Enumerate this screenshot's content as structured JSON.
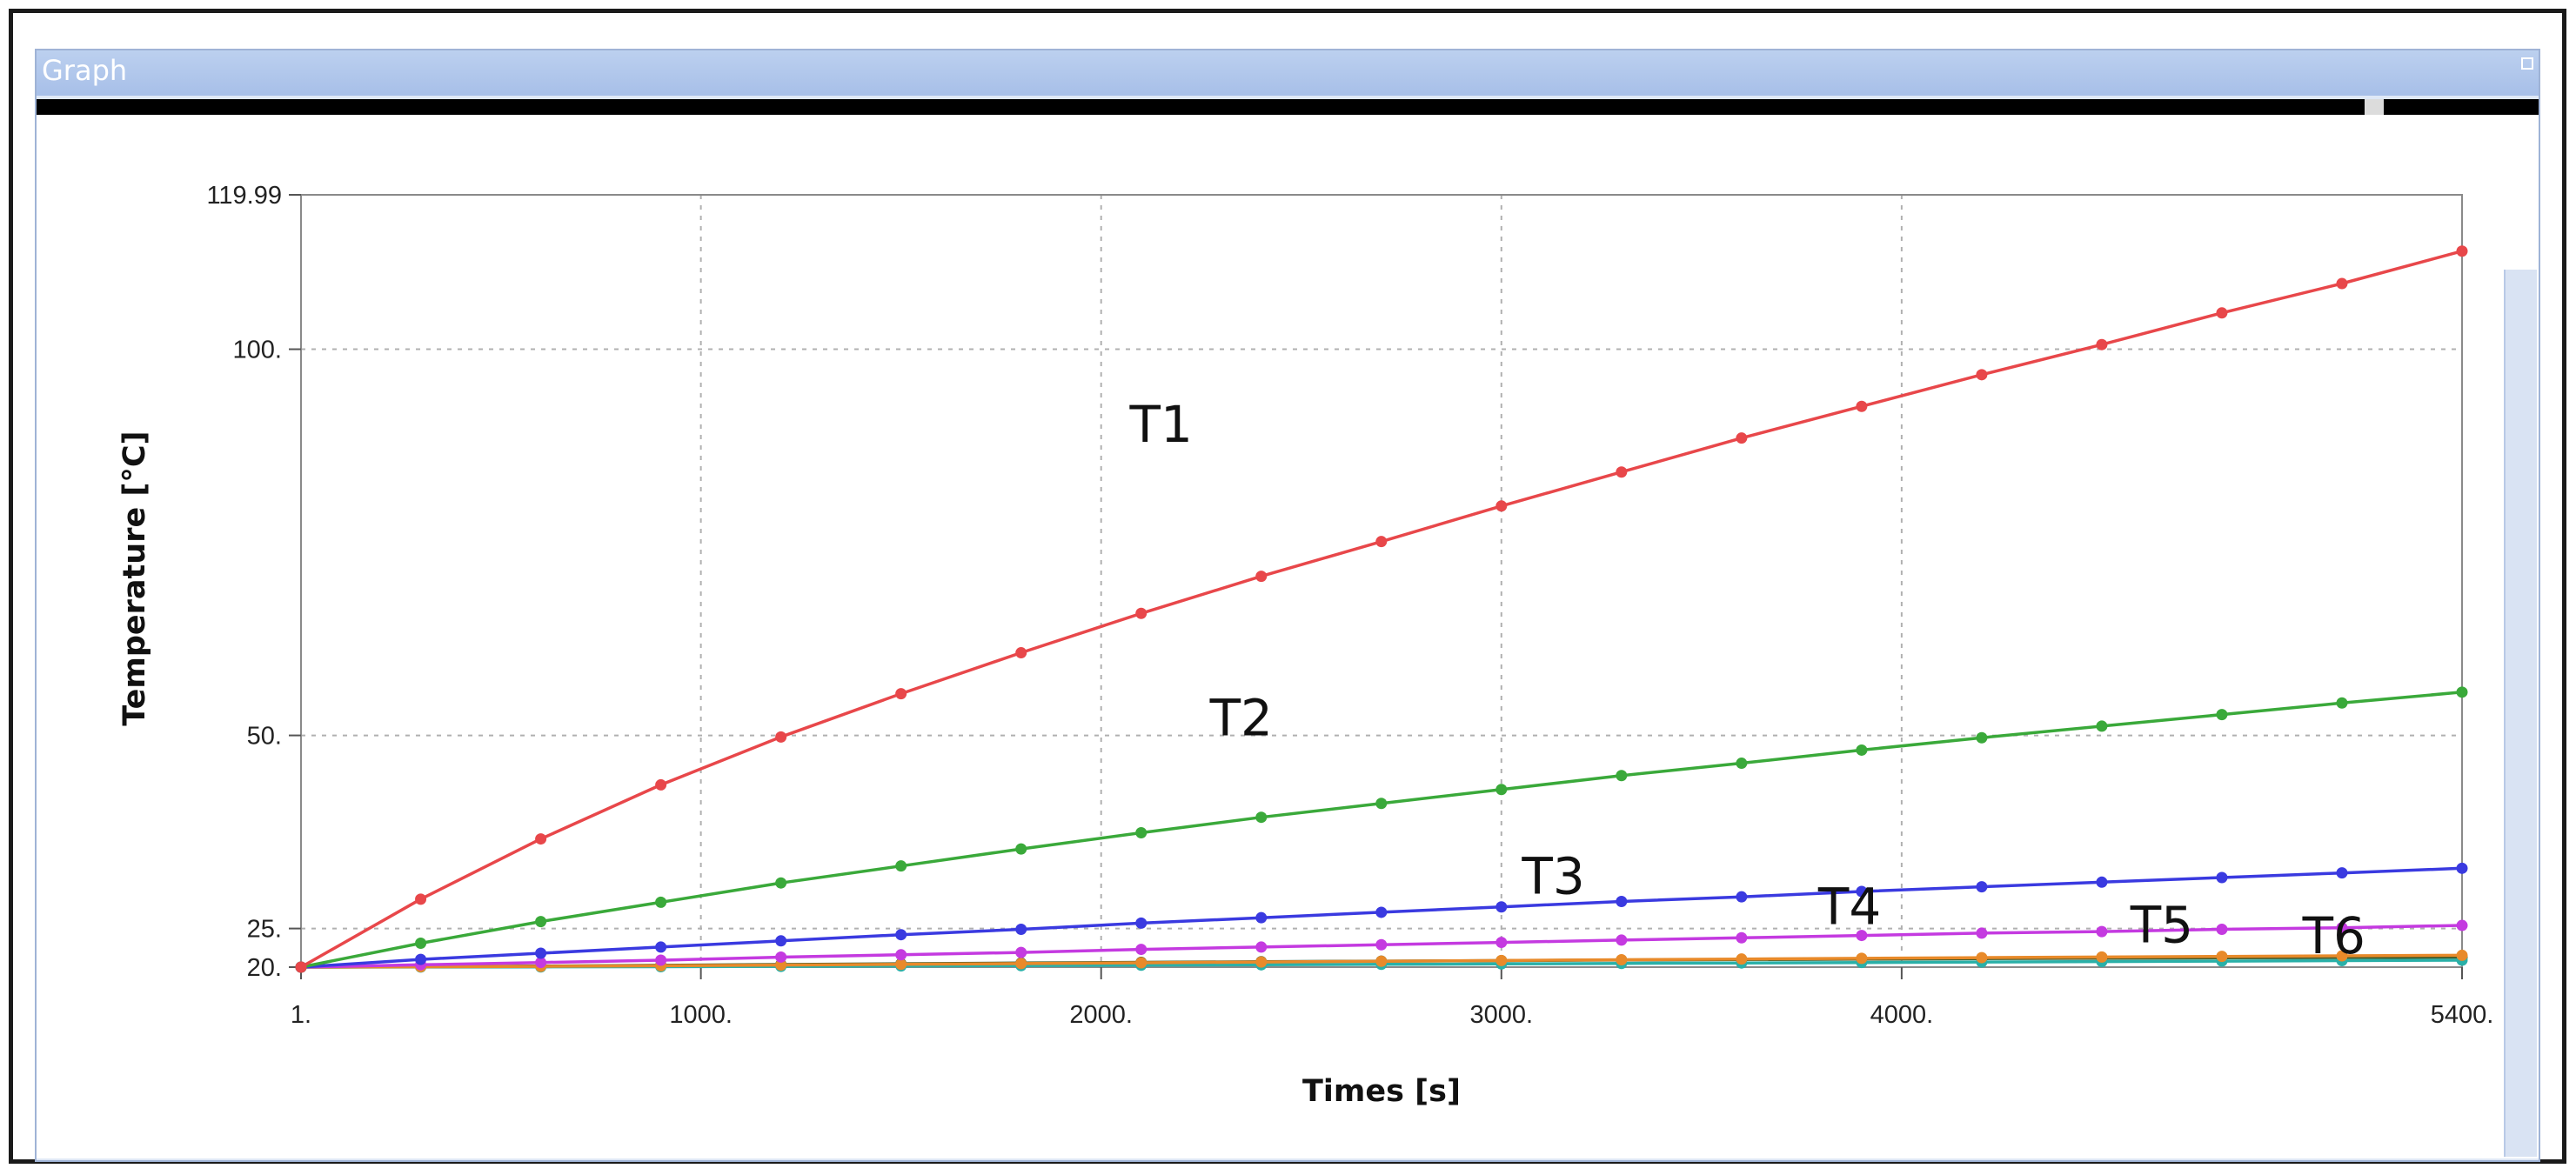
{
  "window": {
    "title": "Graph"
  },
  "chart_data": {
    "type": "line",
    "xlabel": "Times  [s]",
    "ylabel": "Temperature  [°C]",
    "xlim": [
      1,
      5400
    ],
    "ylim": [
      20,
      119.99
    ],
    "x_ticks": [
      {
        "value": 1,
        "label": "1."
      },
      {
        "value": 1000,
        "label": "1000."
      },
      {
        "value": 2000,
        "label": "2000."
      },
      {
        "value": 3000,
        "label": "3000."
      },
      {
        "value": 4000,
        "label": "4000."
      },
      {
        "value": 5400,
        "label": "5400."
      }
    ],
    "y_ticks": [
      {
        "value": 20,
        "label": "20."
      },
      {
        "value": 25,
        "label": "25."
      },
      {
        "value": 50,
        "label": "50."
      },
      {
        "value": 100,
        "label": "100."
      },
      {
        "value": 119.99,
        "label": "119.99"
      }
    ],
    "grid": true,
    "x": [
      1,
      300,
      600,
      900,
      1200,
      1500,
      1800,
      2100,
      2400,
      2700,
      3000,
      3300,
      3600,
      3900,
      4200,
      4500,
      4800,
      5100,
      5400
    ],
    "series": [
      {
        "name": "T1",
        "color": "#e8474a",
        "values": [
          20.0,
          28.8,
          36.6,
          43.6,
          49.8,
          55.4,
          60.7,
          65.8,
          70.6,
          75.1,
          79.7,
          84.1,
          88.5,
          92.6,
          96.7,
          100.6,
          104.7,
          108.5,
          112.7
        ]
      },
      {
        "name": "T2",
        "color": "#3aa93a",
        "values": [
          20.0,
          23.1,
          25.9,
          28.4,
          30.9,
          33.1,
          35.3,
          37.4,
          39.4,
          41.2,
          43.0,
          44.8,
          46.4,
          48.1,
          49.7,
          51.2,
          52.7,
          54.2,
          55.6
        ]
      },
      {
        "name": "T3",
        "color": "#3a3ae0",
        "values": [
          20.0,
          21.0,
          21.8,
          22.6,
          23.4,
          24.2,
          24.9,
          25.7,
          26.4,
          27.1,
          27.8,
          28.5,
          29.1,
          29.8,
          30.4,
          31.0,
          31.6,
          32.2,
          32.8
        ]
      },
      {
        "name": "T4",
        "color": "#c43ae0",
        "values": [
          20.0,
          20.3,
          20.6,
          20.9,
          21.3,
          21.6,
          21.9,
          22.3,
          22.6,
          22.9,
          23.2,
          23.5,
          23.8,
          24.1,
          24.4,
          24.6,
          24.9,
          25.1,
          25.4
        ]
      },
      {
        "name": "T5",
        "color": "#e88a2a",
        "values": [
          20.0,
          20.05,
          20.1,
          20.18,
          20.27,
          20.36,
          20.46,
          20.56,
          20.66,
          20.76,
          20.86,
          20.96,
          21.05,
          21.14,
          21.23,
          21.31,
          21.39,
          21.46,
          21.53
        ]
      },
      {
        "name": "T6",
        "color": "#2ab0a8",
        "values": [
          20.0,
          20.01,
          20.03,
          20.06,
          20.1,
          20.15,
          20.2,
          20.25,
          20.3,
          20.36,
          20.42,
          20.48,
          20.54,
          20.6,
          20.66,
          20.72,
          20.78,
          20.84,
          20.9
        ]
      },
      {
        "name": "",
        "color": "#3c5a2a",
        "values": [
          20.0,
          20.06,
          20.14,
          20.24,
          20.34,
          20.44,
          20.53,
          20.62,
          20.7,
          20.78,
          20.85,
          20.92,
          20.98,
          21.04,
          21.1,
          21.15,
          21.2,
          21.25,
          21.3
        ]
      }
    ]
  }
}
